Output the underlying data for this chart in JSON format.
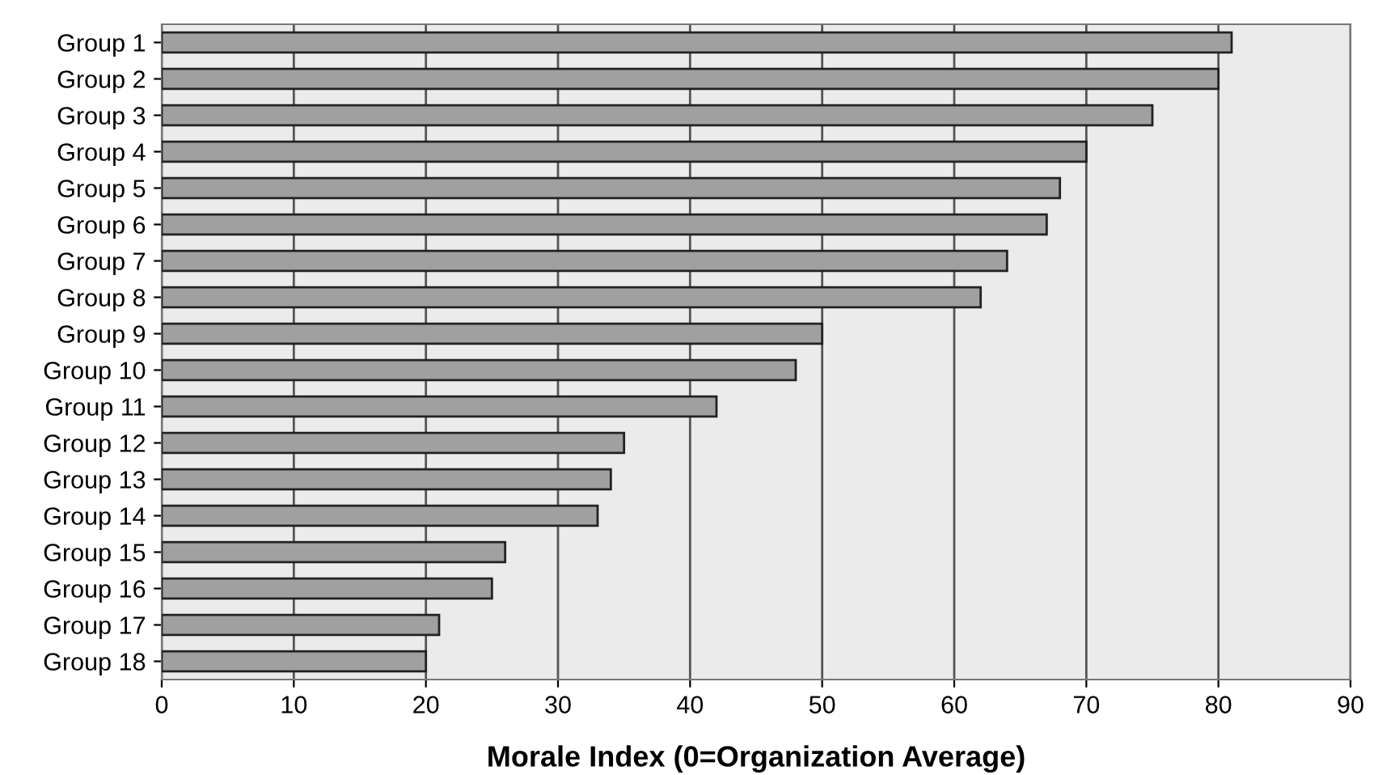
{
  "chart_data": {
    "type": "bar",
    "orientation": "horizontal",
    "xlabel": "Morale Index (0=Organization Average)",
    "categories": [
      "Group 1",
      "Group 2",
      "Group 3",
      "Group 4",
      "Group 5",
      "Group 6",
      "Group 7",
      "Group 8",
      "Group 9",
      "Group 10",
      "Group 11",
      "Group 12",
      "Group 13",
      "Group 14",
      "Group 15",
      "Group 16",
      "Group 17",
      "Group 18"
    ],
    "values": [
      81,
      80,
      75,
      70,
      68,
      67,
      64,
      62,
      50,
      48,
      42,
      35,
      34,
      33,
      26,
      25,
      21,
      20
    ],
    "color": "#a0a0a0",
    "xlim": [
      0,
      90
    ],
    "xticks": [
      0,
      10,
      20,
      30,
      40,
      50,
      60,
      70,
      80,
      90
    ],
    "grid": "x"
  }
}
